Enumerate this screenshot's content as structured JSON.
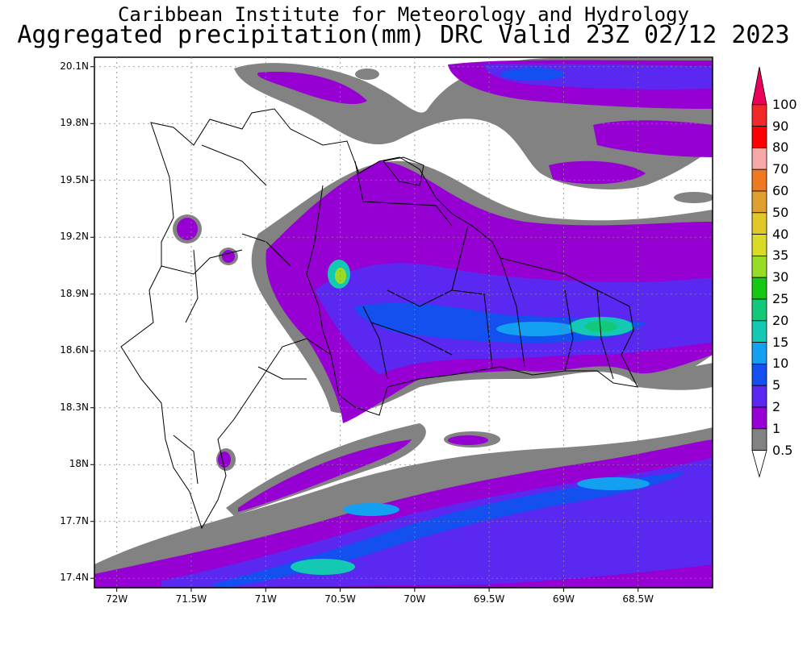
{
  "header": {
    "line1": "Caribbean Institute for Meteorology and Hydrology",
    "line2": "Aggregated precipitation(mm) DRC Valid 23Z 02/12 2023"
  },
  "axes": {
    "lat_labels": [
      "20.1N",
      "19.8N",
      "19.5N",
      "19.2N",
      "18.9N",
      "18.6N",
      "18.3N",
      "18N",
      "17.7N",
      "17.4N"
    ],
    "lon_labels": [
      "72W",
      "71.5W",
      "71W",
      "70.5W",
      "70W",
      "69.5W",
      "69W",
      "68.5W"
    ],
    "lat_range": [
      17.35,
      20.15
    ],
    "lon_range": [
      -72.15,
      -68.0
    ]
  },
  "legend": {
    "labels": [
      "100",
      "90",
      "80",
      "70",
      "60",
      "50",
      "40",
      "35",
      "30",
      "25",
      "20",
      "15",
      "10",
      "5",
      "2",
      "1",
      "0.5"
    ],
    "colors": [
      "#e8005a",
      "#f02828",
      "#fa0000",
      "#f8a8a8",
      "#f07820",
      "#e0a030",
      "#e0c828",
      "#d8dc28",
      "#98dc28",
      "#14c814",
      "#14c87a",
      "#14c8b4",
      "#14a0f0",
      "#1450f0",
      "#5a28f0",
      "#9600d2",
      "#828282",
      "#ffffff"
    ]
  },
  "colors": {
    "gray": "#828282",
    "purple": "#9600d2",
    "violet": "#5a28f0",
    "blue": "#1450f0",
    "light_blue": "#14a0f0",
    "teal": "#14c8b4",
    "green": "#14c87a"
  }
}
